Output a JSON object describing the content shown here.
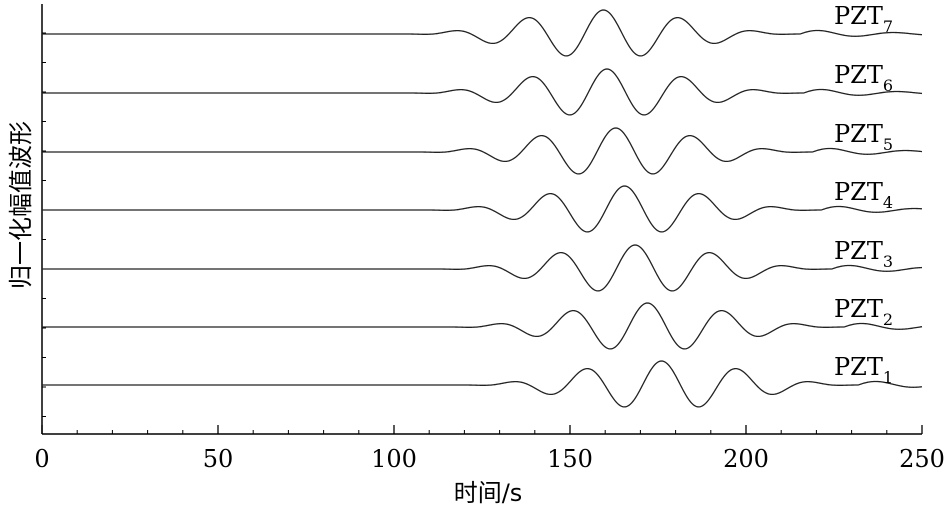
{
  "chart_data": {
    "type": "line",
    "xlabel": "时间/s",
    "ylabel": "归一化幅值波形",
    "xlim": [
      0,
      250
    ],
    "xticks": [
      0,
      50,
      100,
      150,
      200,
      250
    ],
    "xtick_labels": [
      "0",
      "50",
      "100",
      "150",
      "200",
      "250"
    ],
    "grid": false,
    "legend": "none",
    "series": [
      {
        "name": "PZT1",
        "label_base": "PZT",
        "label_sub": "1",
        "arrival": 140,
        "center": 176.0,
        "period": 21.5
      },
      {
        "name": "PZT2",
        "label_base": "PZT",
        "label_sub": "2",
        "arrival": 135,
        "center": 172.0,
        "period": 21.5
      },
      {
        "name": "PZT3",
        "label_base": "PZT",
        "label_sub": "3",
        "arrival": 130,
        "center": 168.5,
        "period": 21.5
      },
      {
        "name": "PZT4",
        "label_base": "PZT",
        "label_sub": "4",
        "arrival": 127,
        "center": 165.5,
        "period": 21.5
      },
      {
        "name": "PZT5",
        "label_base": "PZT",
        "label_sub": "5",
        "arrival": 124,
        "center": 163.0,
        "period": 21.5
      },
      {
        "name": "PZT6",
        "label_base": "PZT",
        "label_sub": "6",
        "arrival": 121,
        "center": 160.5,
        "period": 21.5
      },
      {
        "name": "PZT7",
        "label_base": "PZT",
        "label_sub": "7",
        "arrival": 118,
        "center": 159.5,
        "period": 21.5
      }
    ]
  }
}
